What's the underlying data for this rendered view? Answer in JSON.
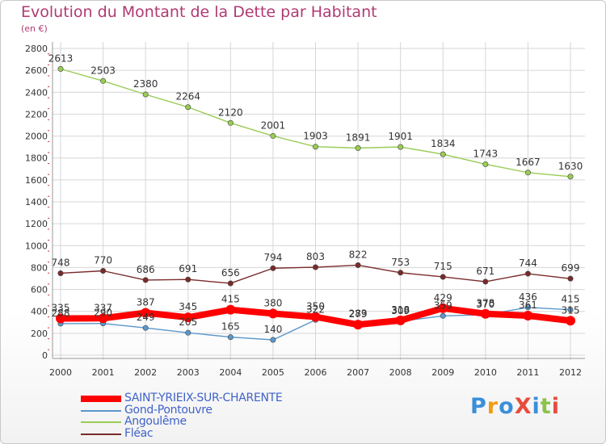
{
  "title": "Evolution du Montant de la Dette par Habitant",
  "subtitle": "(en €)",
  "logo_text": "ProXiti",
  "chart_data": {
    "type": "line",
    "title": "Evolution du Montant de la Dette par Habitant",
    "subtitle": "(en €)",
    "xlabel": "",
    "ylabel": "",
    "categories": [
      "2000",
      "2001",
      "2002",
      "2003",
      "2004",
      "2005",
      "2006",
      "2007",
      "2008",
      "2009",
      "2010",
      "2011",
      "2012"
    ],
    "ylim": [
      0,
      2800
    ],
    "yticks": [
      0,
      200,
      400,
      600,
      800,
      1000,
      1200,
      1400,
      1600,
      1800,
      2000,
      2200,
      2400,
      2600,
      2800
    ],
    "grid": true,
    "legend_position": "bottom-left",
    "series": [
      {
        "name": "Angoulême",
        "color": "#99cc55",
        "values": [
          2613,
          2503,
          2380,
          2264,
          2120,
          2001,
          1903,
          1891,
          1901,
          1834,
          1743,
          1667,
          1630
        ]
      },
      {
        "name": "Fléac",
        "color": "#7a2a2a",
        "values": [
          748,
          770,
          686,
          691,
          656,
          794,
          803,
          822,
          753,
          715,
          671,
          744,
          699
        ]
      },
      {
        "name": "Gond-Pontouvre",
        "color": "#5b97cc",
        "values": [
          288,
          290,
          249,
          205,
          165,
          140,
          322,
          283,
          309,
          359,
          370,
          436,
          415
        ]
      },
      {
        "name": "SAINT-YRIEIX-SUR-CHARENTE",
        "color": "#ff0000",
        "values": [
          335,
          337,
          387,
          345,
          415,
          380,
          350,
          279,
          318,
          429,
          378,
          361,
          315
        ]
      }
    ],
    "legend_order": [
      "SAINT-YRIEIX-SUR-CHARENTE",
      "Gond-Pontouvre",
      "Angoulême",
      "Fléac"
    ]
  }
}
